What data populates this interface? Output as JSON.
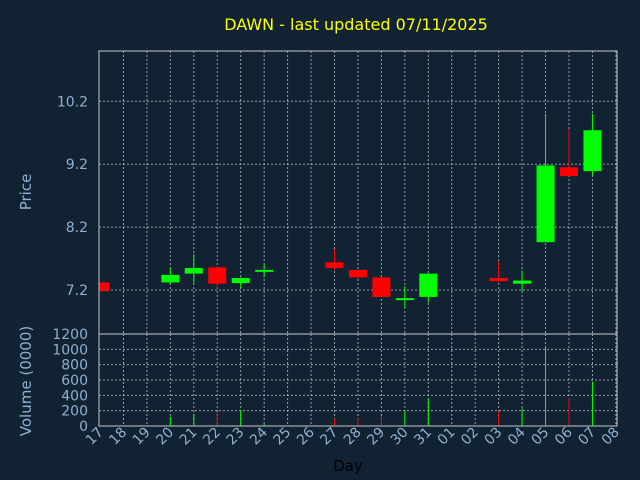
{
  "chart_data": {
    "type": "candlestick",
    "title": "DAWN - last updated 07/11/2025",
    "xlabel": "Day",
    "colors": {
      "background": "#112233",
      "up": "#00ff00",
      "down": "#ff0000",
      "title": "#ffff00",
      "axis_text": "#8fb0d0",
      "grid": "#c8c8c8"
    },
    "price_panel": {
      "ylabel": "Price",
      "ylim": [
        6.5,
        11.0
      ],
      "yticks": [
        "7.2",
        "8.2",
        "9.2",
        "10.2"
      ],
      "grid": true
    },
    "volume_panel": {
      "ylabel": "Volume (0000)",
      "ylim": [
        0,
        1200
      ],
      "yticks": [
        "0",
        "200",
        "400",
        "600",
        "800",
        "1000",
        "1200"
      ],
      "grid": true
    },
    "x_tick_labels": [
      "17",
      "18",
      "19",
      "20",
      "21",
      "22",
      "23",
      "24",
      "25",
      "26",
      "27",
      "28",
      "29",
      "30",
      "31",
      "01",
      "02",
      "03",
      "04",
      "05",
      "06",
      "07",
      "08"
    ],
    "candles": [
      {
        "day": "17",
        "open": 7.32,
        "close": 7.18,
        "high": 7.32,
        "low": 7.18,
        "volume": 0
      },
      {
        "day": "20",
        "open": 7.32,
        "close": 7.44,
        "high": 7.55,
        "low": 7.3,
        "volume": 120
      },
      {
        "day": "21",
        "open": 7.46,
        "close": 7.55,
        "high": 7.77,
        "low": 7.31,
        "volume": 160
      },
      {
        "day": "22",
        "open": 7.56,
        "close": 7.3,
        "high": 7.56,
        "low": 7.22,
        "volume": 180
      },
      {
        "day": "23",
        "open": 7.31,
        "close": 7.39,
        "high": 7.4,
        "low": 7.23,
        "volume": 210
      },
      {
        "day": "24",
        "open": 7.5,
        "close": 7.52,
        "high": 7.61,
        "low": 7.4,
        "volume": 25
      },
      {
        "day": "27",
        "open": 7.64,
        "close": 7.55,
        "high": 7.85,
        "low": 7.52,
        "volume": 90
      },
      {
        "day": "28",
        "open": 7.52,
        "close": 7.4,
        "high": 7.52,
        "low": 7.38,
        "volume": 110
      },
      {
        "day": "29",
        "open": 7.4,
        "close": 7.09,
        "high": 7.4,
        "low": 7.09,
        "volume": 130
      },
      {
        "day": "30",
        "open": 7.05,
        "close": 7.07,
        "high": 7.26,
        "low": 6.92,
        "volume": 200
      },
      {
        "day": "31",
        "open": 7.09,
        "close": 7.46,
        "high": 7.46,
        "low": 7.0,
        "volume": 360
      },
      {
        "day": "03",
        "open": 7.39,
        "close": 7.34,
        "high": 7.65,
        "low": 7.34,
        "volume": 190
      },
      {
        "day": "04",
        "open": 7.3,
        "close": 7.35,
        "high": 7.51,
        "low": 7.18,
        "volume": 230
      },
      {
        "day": "05",
        "open": 7.96,
        "close": 9.18,
        "high": 10.0,
        "low": 7.96,
        "volume": 1040
      },
      {
        "day": "06",
        "open": 9.15,
        "close": 9.01,
        "high": 9.76,
        "low": 9.01,
        "volume": 360
      },
      {
        "day": "07",
        "open": 9.09,
        "close": 9.74,
        "high": 10.0,
        "low": 9.02,
        "volume": 580
      }
    ]
  }
}
